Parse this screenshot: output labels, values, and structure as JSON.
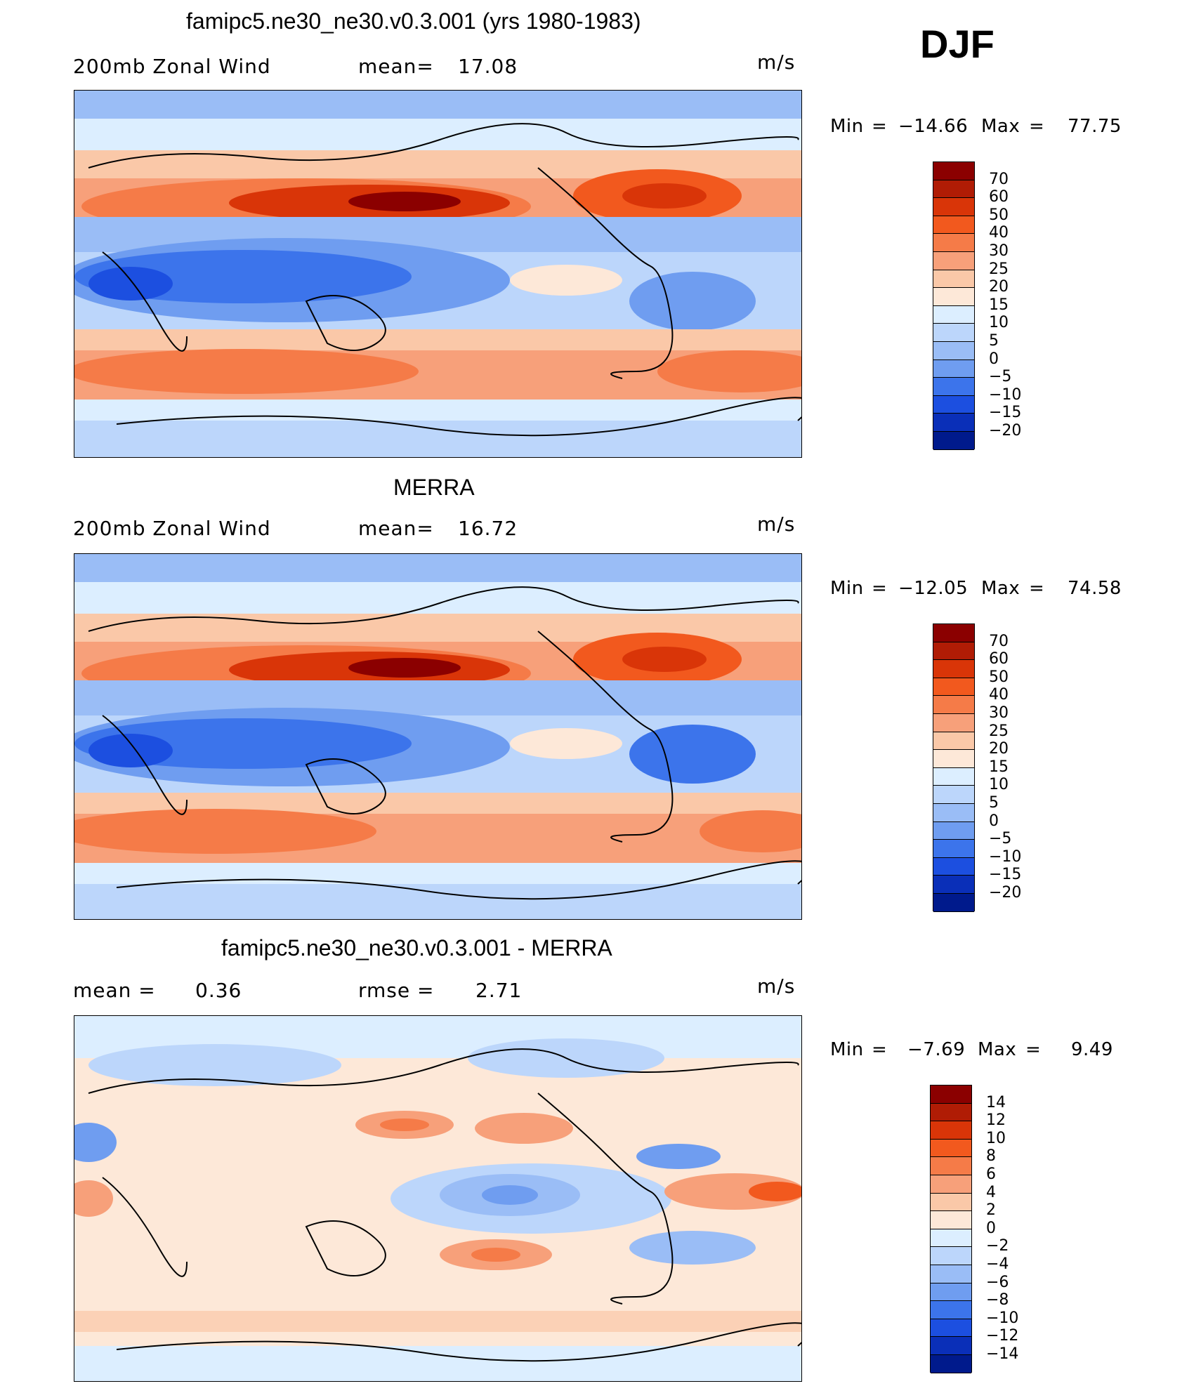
{
  "season": "DJF",
  "panels": [
    {
      "title": "famipc5.ne30_ne30.v0.3.001 (yrs 1980-1983)",
      "left_label": "200mb Zonal Wind",
      "mid_label": "mean=",
      "mid_value": "17.08",
      "units": "m/s",
      "min_label": "Min",
      "min_value": "−14.66",
      "max_label": "Max",
      "max_value": "77.75",
      "colorbar": {
        "labels": [
          "70",
          "60",
          "50",
          "40",
          "30",
          "25",
          "20",
          "15",
          "10",
          "5",
          "0",
          "−5",
          "−10",
          "−15",
          "−20"
        ],
        "colors": [
          "#8b0000",
          "#b01c05",
          "#d93508",
          "#f2591e",
          "#f57b48",
          "#f7a07a",
          "#fac8a8",
          "#fde8d8",
          "#dceeff",
          "#bcd6fb",
          "#9abdf6",
          "#6f9df0",
          "#3c74eb",
          "#1c4fe0",
          "#0a2fb8",
          "#001a8c"
        ]
      }
    },
    {
      "title": "MERRA",
      "left_label": "200mb Zonal Wind",
      "mid_label": "mean=",
      "mid_value": "16.72",
      "units": "m/s",
      "min_label": "Min",
      "min_value": "−12.05",
      "max_label": "Max",
      "max_value": "74.58",
      "colorbar": {
        "labels": [
          "70",
          "60",
          "50",
          "40",
          "30",
          "25",
          "20",
          "15",
          "10",
          "5",
          "0",
          "−5",
          "−10",
          "−15",
          "−20"
        ],
        "colors": [
          "#8b0000",
          "#b01c05",
          "#d93508",
          "#f2591e",
          "#f57b48",
          "#f7a07a",
          "#fac8a8",
          "#fde8d8",
          "#dceeff",
          "#bcd6fb",
          "#9abdf6",
          "#6f9df0",
          "#3c74eb",
          "#1c4fe0",
          "#0a2fb8",
          "#001a8c"
        ]
      }
    },
    {
      "title": "famipc5.ne30_ne30.v0.3.001 - MERRA",
      "left_label": "mean =",
      "left_value": "0.36",
      "mid_label": "rmse =",
      "mid_value": "2.71",
      "units": "m/s",
      "min_label": "Min",
      "min_value": "−7.69",
      "max_label": "Max",
      "max_value": "9.49",
      "colorbar": {
        "labels": [
          "14",
          "12",
          "10",
          "8",
          "6",
          "4",
          "2",
          "0",
          "−2",
          "−4",
          "−6",
          "−8",
          "−10",
          "−12",
          "−14"
        ],
        "colors": [
          "#8b0000",
          "#b01c05",
          "#d93508",
          "#f2591e",
          "#f57b48",
          "#f7a07a",
          "#fac8a8",
          "#fde8d8",
          "#dceeff",
          "#bcd6fb",
          "#9abdf6",
          "#6f9df0",
          "#3c74eb",
          "#1c4fe0",
          "#0a2fb8",
          "#001a8c"
        ]
      }
    }
  ]
}
